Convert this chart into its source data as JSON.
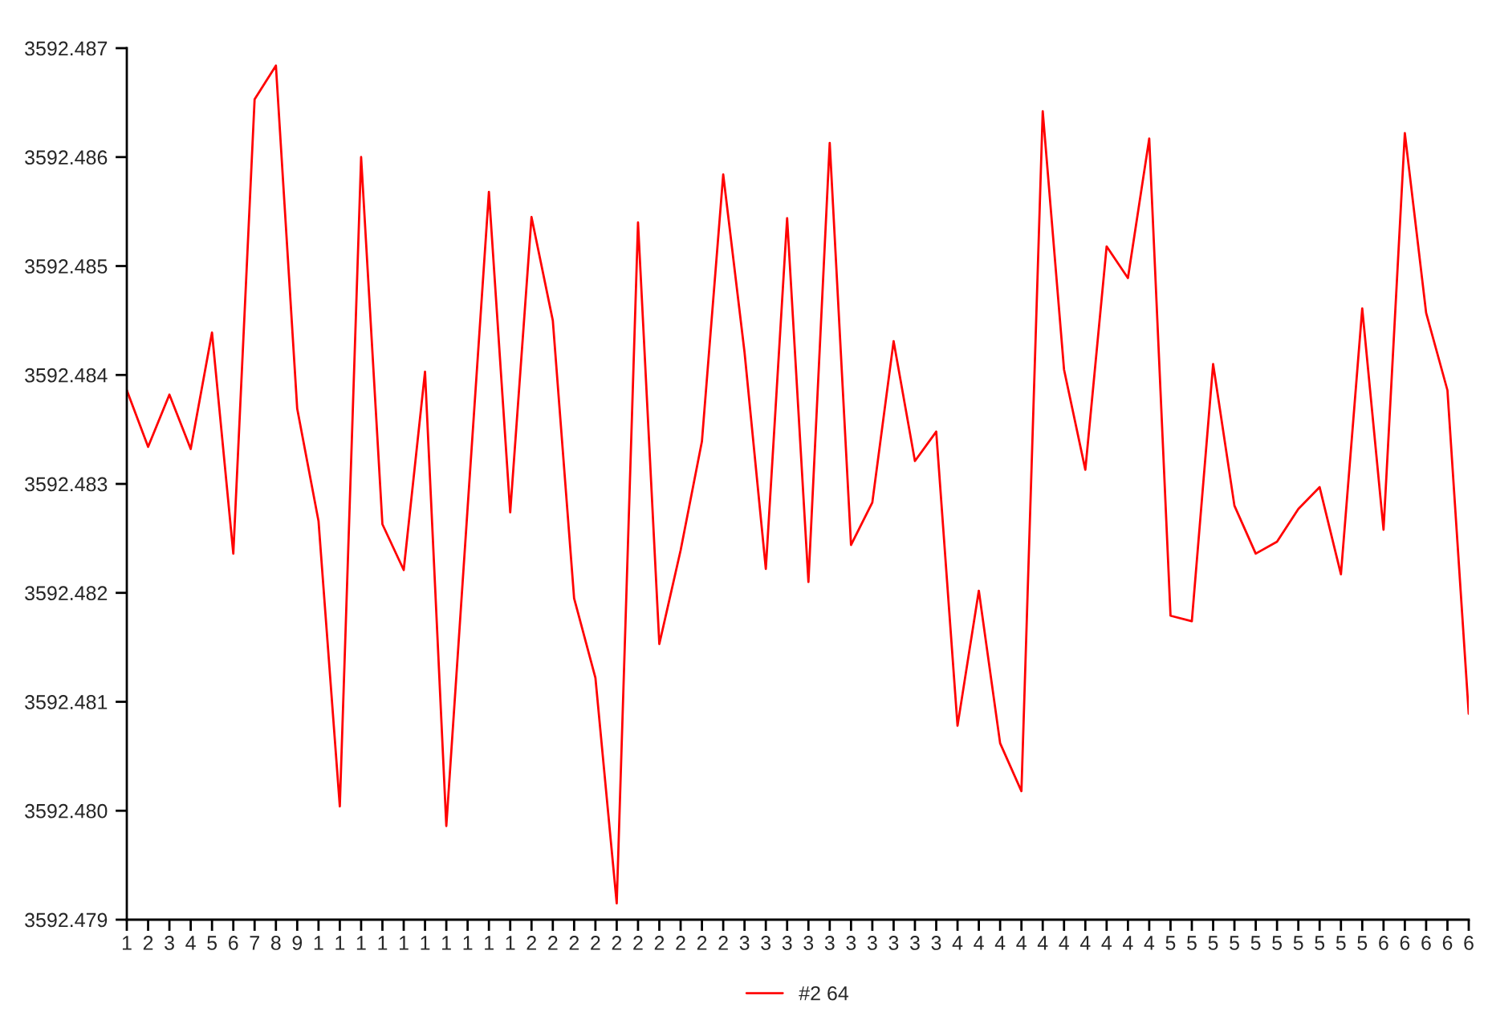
{
  "chart_data": {
    "type": "line",
    "categories": [
      "1",
      "2",
      "3",
      "4",
      "5",
      "6",
      "7",
      "8",
      "9",
      "1",
      "1",
      "1",
      "1",
      "1",
      "1",
      "1",
      "1",
      "1",
      "1",
      "2",
      "2",
      "2",
      "2",
      "2",
      "2",
      "2",
      "2",
      "2",
      "2",
      "3",
      "3",
      "3",
      "3",
      "3",
      "3",
      "3",
      "3",
      "3",
      "3",
      "4",
      "4",
      "4",
      "4",
      "4",
      "4",
      "4",
      "4",
      "4",
      "4",
      "5",
      "5",
      "5",
      "5",
      "5",
      "5",
      "5",
      "5",
      "5",
      "5",
      "6",
      "6",
      "6",
      "6",
      "6"
    ],
    "series": [
      {
        "name": "#2 64",
        "color": "#ff0000",
        "values": [
          3592.48386,
          3592.48334,
          3592.48382,
          3592.48332,
          3592.48439,
          3592.48236,
          3592.48653,
          3592.48684,
          3592.48369,
          3592.48266,
          3592.48004,
          3592.486,
          3592.48263,
          3592.48221,
          3592.48403,
          3592.47986,
          3592.48278,
          3592.48568,
          3592.48274,
          3592.48545,
          3592.4845,
          3592.48195,
          3592.48122,
          3592.47915,
          3592.4854,
          3592.48153,
          3592.48239,
          3592.48339,
          3592.48584,
          3592.48421,
          3592.48222,
          3592.48544,
          3592.4821,
          3592.48613,
          3592.48244,
          3592.48283,
          3592.48431,
          3592.48321,
          3592.48348,
          3592.48078,
          3592.48202,
          3592.48062,
          3592.48018,
          3592.48642,
          3592.48405,
          3592.48313,
          3592.48518,
          3592.48489,
          3592.48617,
          3592.48179,
          3592.48174,
          3592.4841,
          3592.4828,
          3592.48236,
          3592.48247,
          3592.48277,
          3592.48297,
          3592.48217,
          3592.48461,
          3592.48258,
          3592.48622,
          3592.48457,
          3592.48386,
          3592.48089
        ]
      }
    ],
    "ylim": [
      3592.479,
      3592.487
    ],
    "yticks": [
      3592.479,
      {
        "value": 3592.48,
        "label": "3592.480"
      },
      3592.481,
      3592.482,
      3592.483,
      3592.484,
      3592.485,
      3592.486,
      3592.487
    ],
    "grid": false,
    "legend": "bottom",
    "marker": "none",
    "line_style": "solid"
  }
}
